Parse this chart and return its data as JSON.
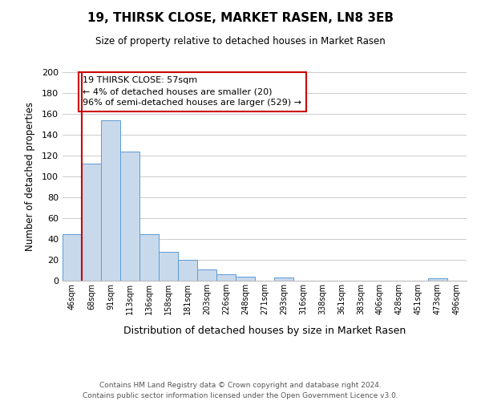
{
  "title": "19, THIRSK CLOSE, MARKET RASEN, LN8 3EB",
  "subtitle": "Size of property relative to detached houses in Market Rasen",
  "xlabel": "Distribution of detached houses by size in Market Rasen",
  "ylabel": "Number of detached properties",
  "bar_color": "#c9d9ec",
  "bar_edge_color": "#5b9bd5",
  "categories": [
    "46sqm",
    "68sqm",
    "91sqm",
    "113sqm",
    "136sqm",
    "158sqm",
    "181sqm",
    "203sqm",
    "226sqm",
    "248sqm",
    "271sqm",
    "293sqm",
    "316sqm",
    "338sqm",
    "361sqm",
    "383sqm",
    "406sqm",
    "428sqm",
    "451sqm",
    "473sqm",
    "496sqm"
  ],
  "values": [
    45,
    112,
    154,
    124,
    45,
    28,
    20,
    11,
    6,
    4,
    0,
    3,
    0,
    0,
    0,
    0,
    0,
    0,
    0,
    2,
    0
  ],
  "ylim": [
    0,
    200
  ],
  "yticks": [
    0,
    20,
    40,
    60,
    80,
    100,
    120,
    140,
    160,
    180,
    200
  ],
  "annotation_title": "19 THIRSK CLOSE: 57sqm",
  "annotation_line1": "← 4% of detached houses are smaller (20)",
  "annotation_line2": "96% of semi-detached houses are larger (529) →",
  "annotation_box_color": "#ffffff",
  "annotation_box_edge_color": "#cc0000",
  "property_line_color": "#cc0000",
  "footer1": "Contains HM Land Registry data © Crown copyright and database right 2024.",
  "footer2": "Contains public sector information licensed under the Open Government Licence v3.0.",
  "grid_color": "#cccccc",
  "background_color": "#ffffff"
}
